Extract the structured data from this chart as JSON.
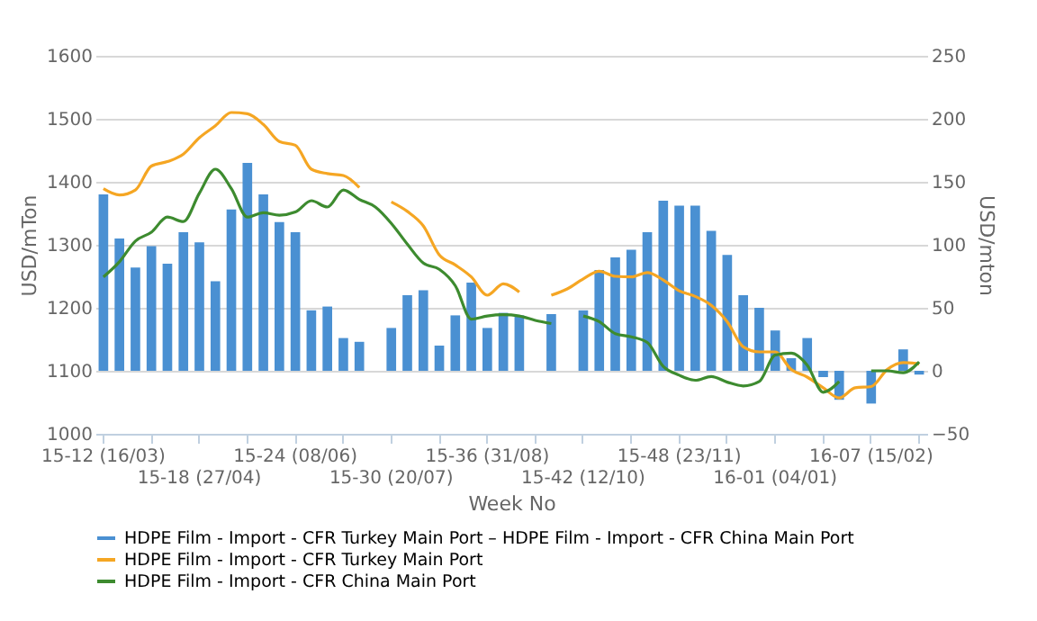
{
  "chart_data": {
    "type": "bar",
    "xlabel": "Week No",
    "ylabel": "USD/mTon",
    "y2label": "USD/mton",
    "categories": [
      "15-12 (16/03)",
      null,
      null,
      null,
      null,
      null,
      "15-18 (27/04)",
      null,
      null,
      null,
      null,
      null,
      "15-24 (08/06)",
      null,
      null,
      null,
      null,
      null,
      "15-30 (20/07)",
      null,
      null,
      null,
      null,
      null,
      "15-36 (31/08)",
      null,
      null,
      null,
      null,
      null,
      "15-42 (12/10)",
      null,
      null,
      null,
      null,
      null,
      "15-48 (23/11)",
      null,
      null,
      null,
      null,
      null,
      "16-01 (04/01)",
      null,
      null,
      null,
      null,
      null,
      "16-07 (15/02)",
      null,
      null,
      null
    ],
    "series": [
      {
        "name": "HDPE Film - Import - CFR Turkey Main Port – HDPE Film - Import - CFR China Main Port",
        "axis": "y2",
        "color": "#4a90d2",
        "values": [
          140,
          105,
          82,
          99,
          85,
          110,
          102,
          71,
          128,
          165,
          140,
          118,
          110,
          48,
          51,
          26,
          23,
          null,
          34,
          60,
          64,
          20,
          44,
          70,
          34,
          46,
          44,
          null,
          45,
          null,
          48,
          80,
          90,
          96,
          110,
          135,
          131,
          131,
          111,
          92,
          60,
          50,
          32,
          10,
          26,
          -5,
          -23,
          null,
          -26,
          null,
          17,
          -3
        ]
      },
      {
        "name": "HDPE Film - Import - CFR Turkey Main Port",
        "type": "line",
        "color": "#f5a623",
        "values": [
          1389,
          1379,
          1387,
          1425,
          1432,
          1444,
          1470,
          1489,
          1510,
          1508,
          1491,
          1464,
          1458,
          1420,
          1413,
          1410,
          1391,
          null,
          1368,
          1353,
          1330,
          1284,
          1268,
          1249,
          1220,
          1238,
          1225,
          null,
          1220,
          1230,
          1246,
          1258,
          1250,
          1249,
          1256,
          1244,
          1227,
          1218,
          1204,
          1178,
          1138,
          1130,
          1130,
          1102,
          1090,
          1073,
          1057,
          1073,
          1075,
          1102,
          1113,
          1111
        ]
      },
      {
        "name": "HDPE Film - Import - CFR China Main Port",
        "type": "line",
        "color": "#3d8b2f",
        "values": [
          1249,
          1273,
          1306,
          1320,
          1344,
          1337,
          1382,
          1420,
          1389,
          1344,
          1351,
          1347,
          1352,
          1370,
          1360,
          1387,
          1372,
          1360,
          1334,
          1301,
          1271,
          1261,
          1235,
          1182,
          1187,
          1189,
          1187,
          1180,
          1175,
          null,
          1187,
          1178,
          1159,
          1154,
          1145,
          1107,
          1093,
          1085,
          1091,
          1082,
          1076,
          1083,
          1125,
          1128,
          1109,
          1066,
          1083,
          null,
          1100,
          1100,
          1097,
          1114
        ]
      }
    ],
    "ylim": [
      1000,
      1600
    ],
    "yticks": [
      1000,
      1100,
      1200,
      1300,
      1400,
      1500,
      1600
    ],
    "y2lim": [
      -50,
      250
    ],
    "y2ticks": [
      -50,
      0,
      50,
      100,
      150,
      200,
      250
    ],
    "grid": "y",
    "legend": "bottom",
    "marker": "none",
    "line_style": "solid"
  }
}
